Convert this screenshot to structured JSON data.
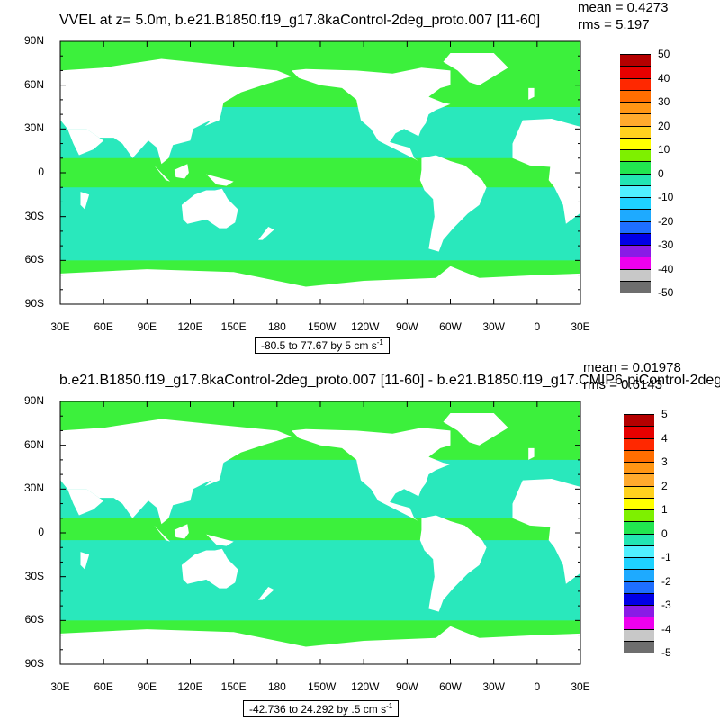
{
  "colors": {
    "ocean": "#3cf03c",
    "ocean_alt": "#26e6d2",
    "land": "#ffffff",
    "frame": "#000000"
  },
  "palette": [
    "#6e6e6e",
    "#c8c8c8",
    "#ee00ee",
    "#8a1be6",
    "#0000e6",
    "#1e6fff",
    "#1eaaff",
    "#1ed2ff",
    "#50f0ff",
    "#22e6b2",
    "#22e650",
    "#7ef000",
    "#ffff00",
    "#ffd21e",
    "#ffaa2d",
    "#ff9614",
    "#ff6e00",
    "#ff2800",
    "#e60000",
    "#b40000"
  ],
  "lat_labels": [
    "90N",
    "60N",
    "30N",
    "0",
    "30S",
    "60S",
    "90S"
  ],
  "lon_labels": [
    "30E",
    "60E",
    "90E",
    "120E",
    "150E",
    "180",
    "150W",
    "120W",
    "90W",
    "60W",
    "30W",
    "0",
    "30E"
  ],
  "panels": [
    {
      "title": "VVEL at z=   5.0m, b.e21.B1850.f19_g17.8kaControl-2deg_proto.007 [11-60]",
      "mean": "mean = 0.4273",
      "rms": "rms = 5.197",
      "range": "-80.5 to 77.67 by 5 cm s",
      "range_sup": "-1",
      "colorbar_labels": [
        "50",
        "40",
        "30",
        "20",
        "10",
        "0",
        "-10",
        "-20",
        "-30",
        "-40",
        "-50"
      ]
    },
    {
      "title": "b.e21.B1850.f19_g17.8kaControl-2deg_proto.007 [11-60] - b.e21.B1850.f19_g17.CMIP6-piControl-2deg",
      "mean": "mean = 0.01978",
      "rms": "rms = 0.6143",
      "range": "-42.736 to 24.292 by .5 cm s",
      "range_sup": "-1",
      "colorbar_labels": [
        "5",
        "4",
        "3",
        "2",
        "1",
        "0",
        "-1",
        "-2",
        "-3",
        "-4",
        "-5"
      ]
    }
  ]
}
